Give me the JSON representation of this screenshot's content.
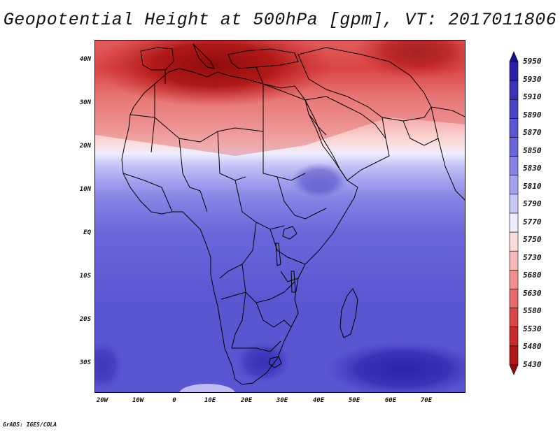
{
  "title": "Geopotential Height at 500hPa [gpm], VT: 2017011806",
  "footer": "GrADS: IGES/COLA",
  "y_axis_labels": [
    "40N",
    "30N",
    "20N",
    "10N",
    "EQ",
    "10S",
    "20S",
    "30S"
  ],
  "x_axis_labels": [
    "20W",
    "10W",
    "0",
    "10E",
    "20E",
    "30E",
    "40E",
    "50E",
    "60E",
    "70E"
  ],
  "colorbar": {
    "levels": [
      "5950",
      "5930",
      "5910",
      "5890",
      "5870",
      "5850",
      "5830",
      "5810",
      "5790",
      "5770",
      "5750",
      "5730",
      "5680",
      "5630",
      "5580",
      "5530",
      "5480",
      "5430"
    ],
    "colors": [
      "#160f8c",
      "#2a22a8",
      "#3a33b8",
      "#4a44c6",
      "#5a55d0",
      "#6a66da",
      "#8582e4",
      "#a3a1ee",
      "#c8c7f6",
      "#eeeefe",
      "#fbdcdc",
      "#f6b9b9",
      "#ef9090",
      "#e66a6a",
      "#db4646",
      "#c92a2a",
      "#b01818",
      "#8e0c0c"
    ]
  },
  "colors": {
    "title": "#111111",
    "frame": "#000000",
    "land_border": "#000000"
  }
}
